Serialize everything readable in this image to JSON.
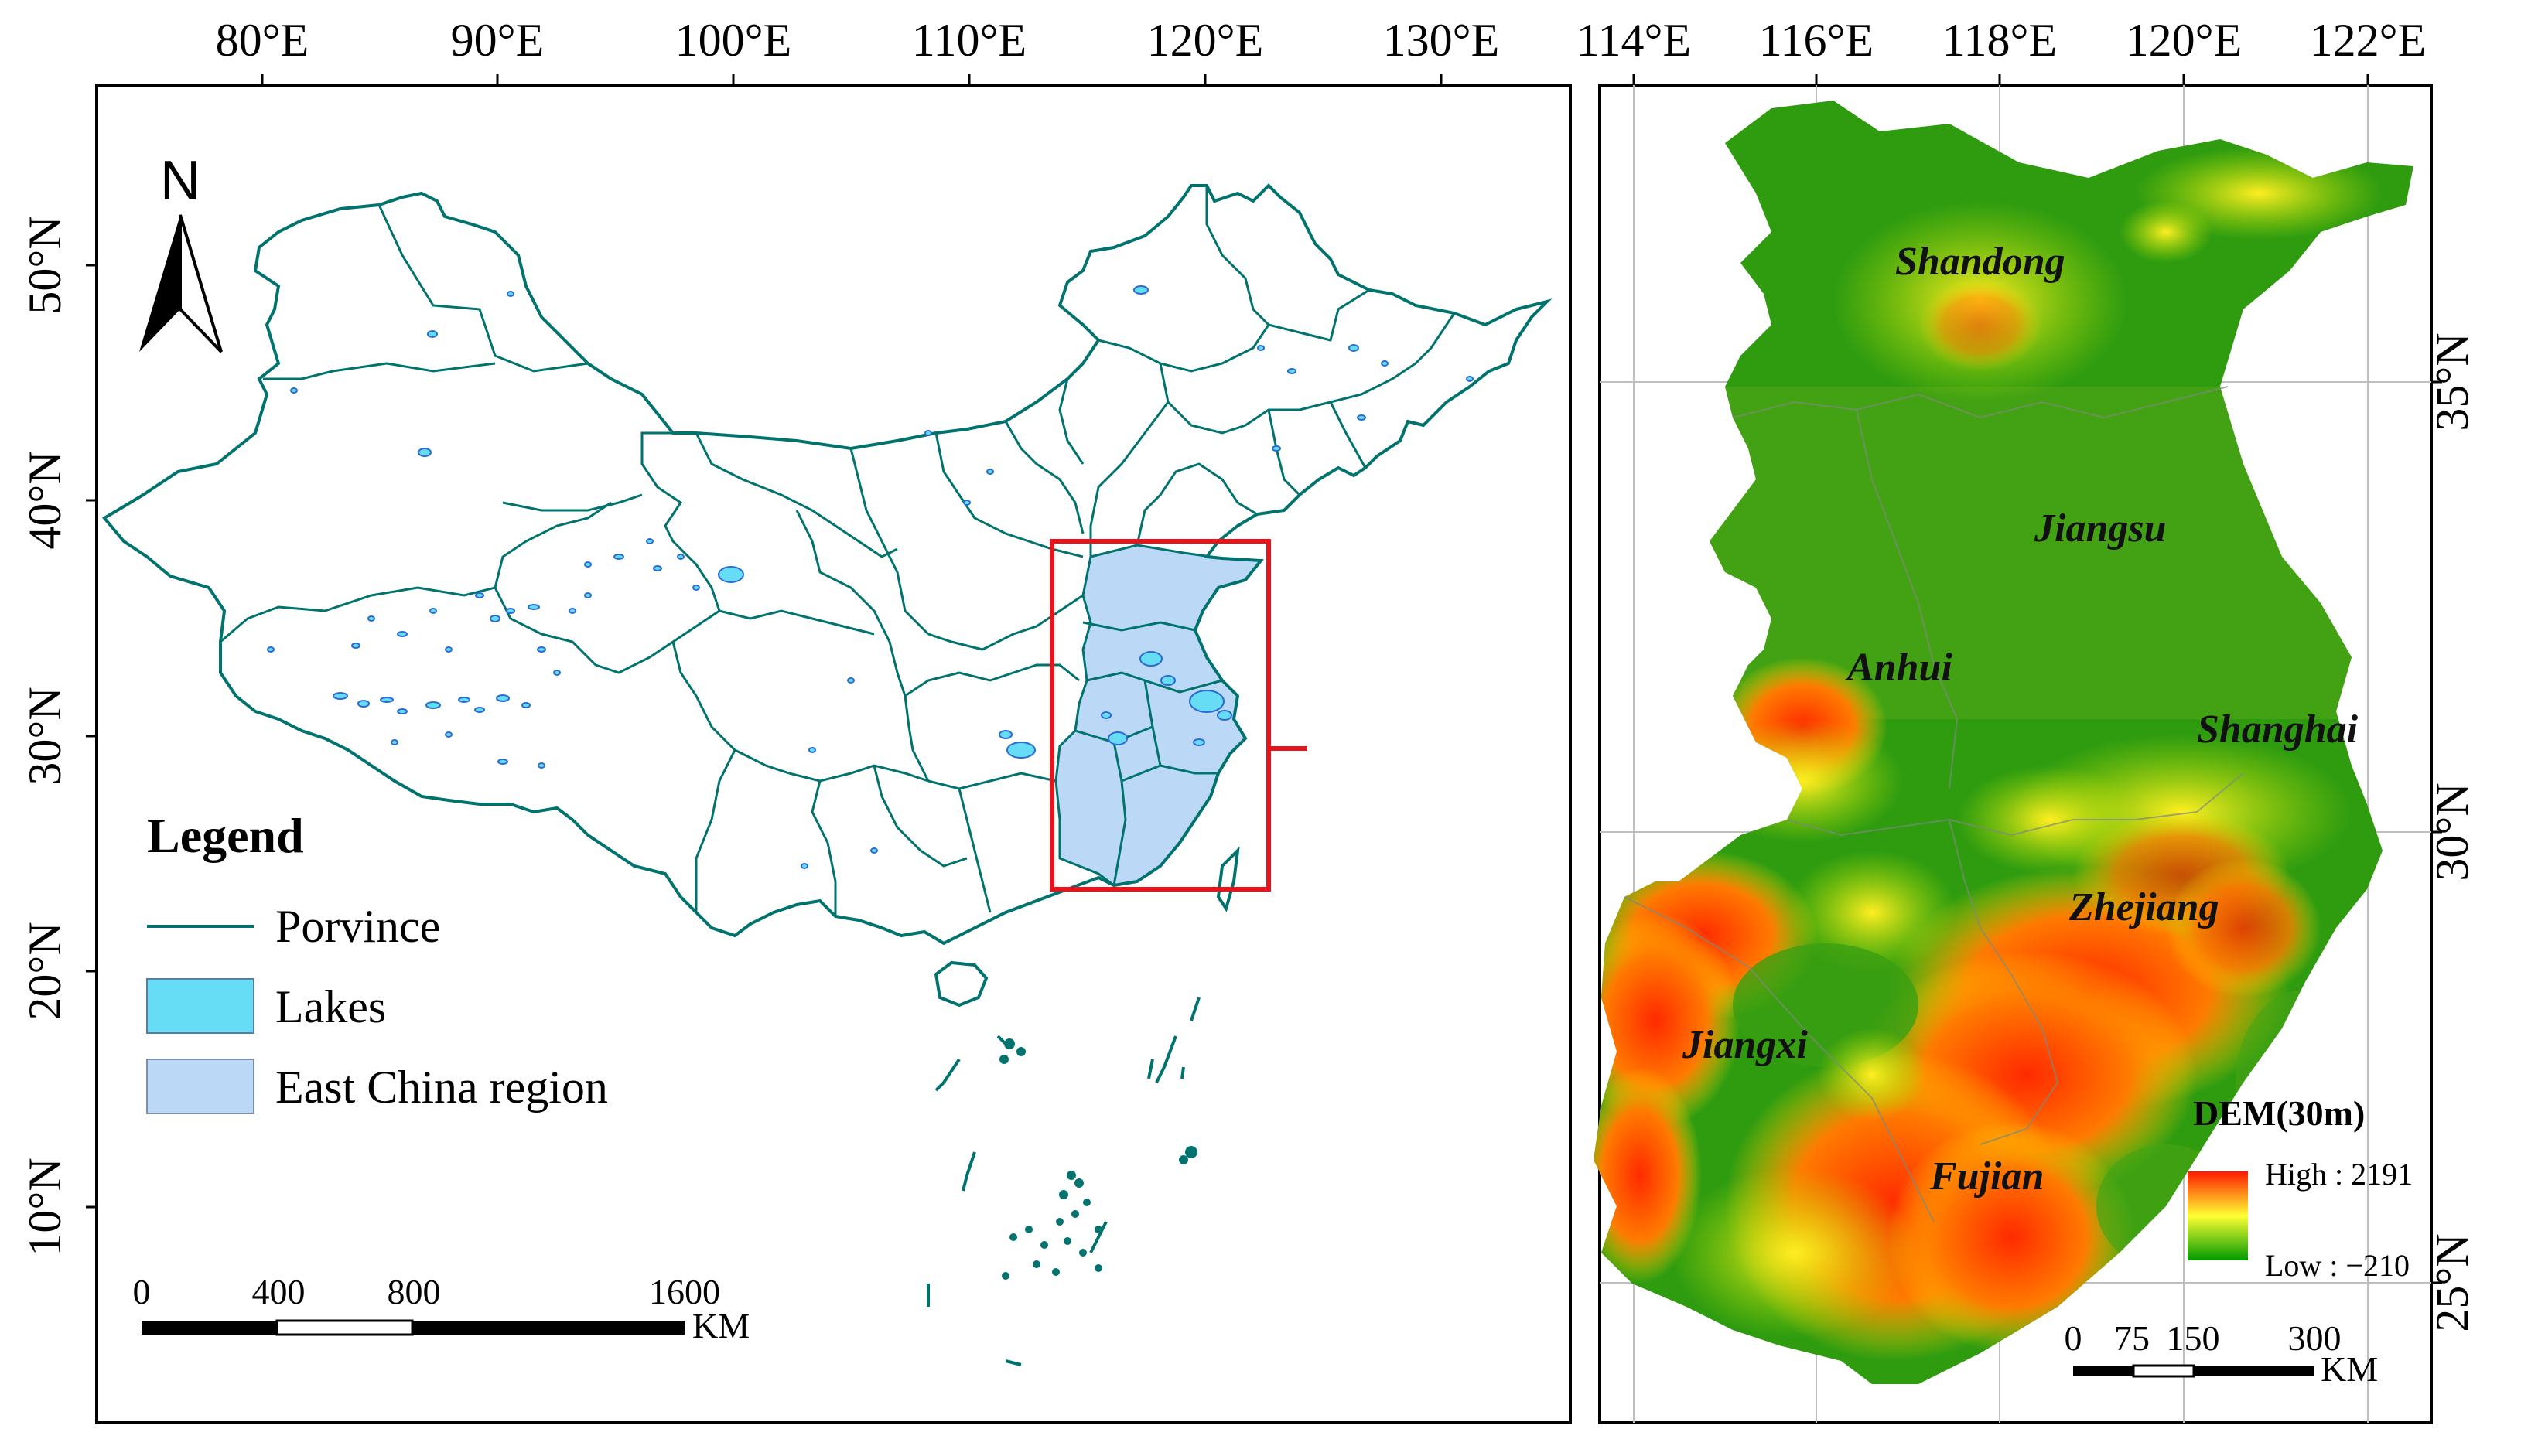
{
  "left_map": {
    "top_ticks": [
      "80°E",
      "90°E",
      "100°E",
      "110°E",
      "120°E",
      "130°E"
    ],
    "left_ticks": [
      "50°N",
      "40°N",
      "30°N",
      "20°N",
      "10°N"
    ],
    "north_label": "N",
    "legend": {
      "title": "Legend",
      "items": [
        {
          "label": "Porvince",
          "color": "#00736e"
        },
        {
          "label": "Lakes",
          "color": "#66ddf5"
        },
        {
          "label": "East China region",
          "color": "#bcd8f7"
        }
      ]
    },
    "scale": {
      "labels": [
        "0",
        "400",
        "800",
        "1600"
      ],
      "unit": "KM"
    },
    "extent_box_color": "#e8131b"
  },
  "right_map": {
    "top_ticks": [
      "114°E",
      "116°E",
      "118°E",
      "120°E",
      "122°E"
    ],
    "right_ticks": [
      "35°N",
      "30°N",
      "25°N"
    ],
    "provinces": [
      "Shandong",
      "Jiangsu",
      "Anhui",
      "Shanghai",
      "Zhejiang",
      "Jiangxi",
      "Fujian"
    ],
    "dem": {
      "title": "DEM(30m)",
      "high": "High : 2191",
      "low": "Low : −210",
      "colors": [
        "#ff0000",
        "#ffff00",
        "#00a000"
      ]
    },
    "scale": {
      "labels": [
        "0",
        "75",
        "150",
        "300"
      ],
      "unit": "KM"
    }
  }
}
